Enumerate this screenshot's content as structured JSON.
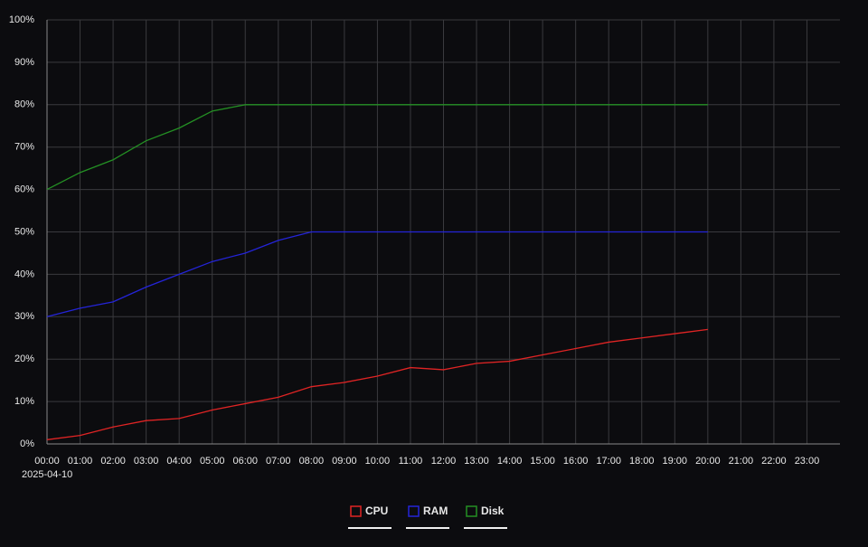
{
  "chart_data": {
    "type": "line",
    "x": [
      0,
      1,
      2,
      3,
      4,
      5,
      6,
      7,
      8,
      9,
      10,
      11,
      12,
      13,
      14,
      15,
      16,
      17,
      18,
      19,
      20
    ],
    "series": [
      {
        "name": "CPU",
        "color": "#e02424",
        "values": [
          1,
          2,
          4,
          5.5,
          6,
          8,
          9.5,
          11,
          13.5,
          14.5,
          16,
          18,
          17.5,
          19,
          19.5,
          21,
          22.5,
          24,
          25,
          26,
          27
        ]
      },
      {
        "name": "RAM",
        "color": "#2424d8",
        "values": [
          30,
          32,
          33.5,
          37,
          40,
          43,
          45,
          48,
          50,
          50,
          50,
          50,
          50,
          50,
          50,
          50,
          50,
          50,
          50,
          50,
          50
        ]
      },
      {
        "name": "Disk",
        "color": "#249024",
        "values": [
          60,
          64,
          67,
          71.5,
          74.5,
          78.5,
          80,
          80,
          80,
          80,
          80,
          80,
          80,
          80,
          80,
          80,
          80,
          80,
          80,
          80,
          80
        ]
      }
    ],
    "xlim": [
      0,
      24
    ],
    "xticks": [
      {
        "value": 0,
        "label": "00:00"
      },
      {
        "value": 1,
        "label": "01:00"
      },
      {
        "value": 2,
        "label": "02:00"
      },
      {
        "value": 3,
        "label": "03:00"
      },
      {
        "value": 4,
        "label": "04:00"
      },
      {
        "value": 5,
        "label": "05:00"
      },
      {
        "value": 6,
        "label": "06:00"
      },
      {
        "value": 7,
        "label": "07:00"
      },
      {
        "value": 8,
        "label": "08:00"
      },
      {
        "value": 9,
        "label": "09:00"
      },
      {
        "value": 10,
        "label": "10:00"
      },
      {
        "value": 11,
        "label": "11:00"
      },
      {
        "value": 12,
        "label": "12:00"
      },
      {
        "value": 13,
        "label": "13:00"
      },
      {
        "value": 14,
        "label": "14:00"
      },
      {
        "value": 15,
        "label": "15:00"
      },
      {
        "value": 16,
        "label": "16:00"
      },
      {
        "value": 17,
        "label": "17:00"
      },
      {
        "value": 18,
        "label": "18:00"
      },
      {
        "value": 19,
        "label": "19:00"
      },
      {
        "value": 20,
        "label": "20:00"
      },
      {
        "value": 21,
        "label": "21:00"
      },
      {
        "value": 22,
        "label": "22:00"
      },
      {
        "value": 23,
        "label": "23:00"
      }
    ],
    "x_date_label": "2025-04-10",
    "ylim": [
      0,
      100
    ],
    "yticks": [
      {
        "value": 0,
        "label": "0%"
      },
      {
        "value": 10,
        "label": "10%"
      },
      {
        "value": 20,
        "label": "20%"
      },
      {
        "value": 30,
        "label": "30%"
      },
      {
        "value": 40,
        "label": "40%"
      },
      {
        "value": 50,
        "label": "50%"
      },
      {
        "value": 60,
        "label": "60%"
      },
      {
        "value": 70,
        "label": "70%"
      },
      {
        "value": 80,
        "label": "80%"
      },
      {
        "value": 90,
        "label": "90%"
      },
      {
        "value": 100,
        "label": "100%"
      }
    ],
    "grid": true
  }
}
